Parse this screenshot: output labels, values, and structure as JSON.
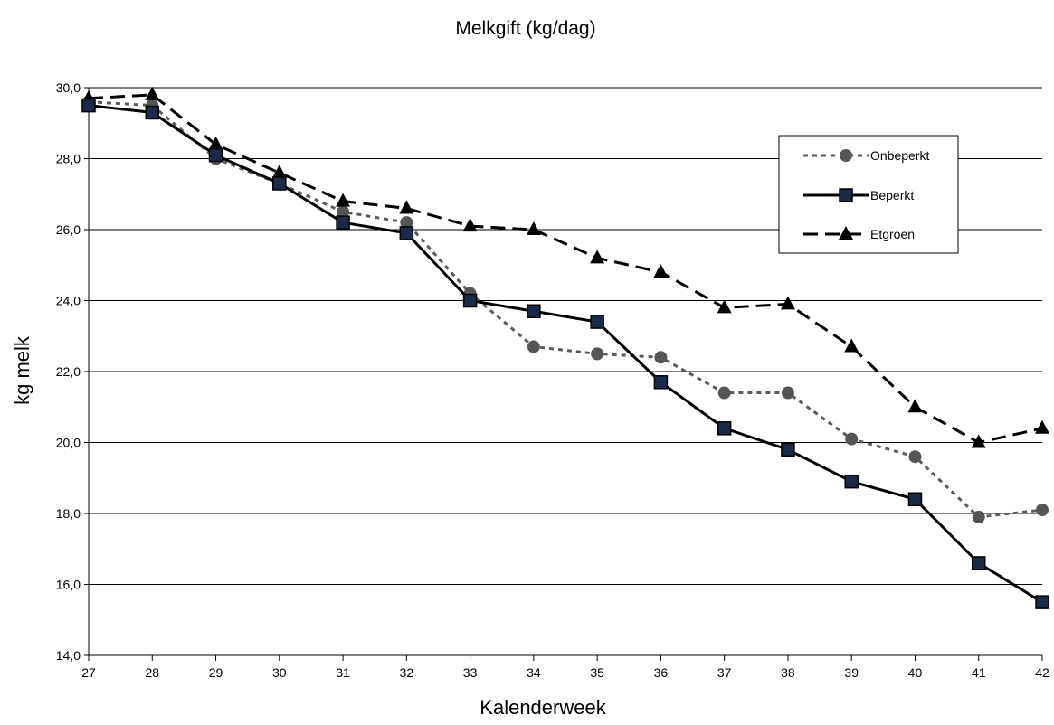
{
  "chart_data": {
    "type": "line",
    "title": "Melkgift (kg/dag)",
    "xlabel": "Kalenderweek",
    "ylabel": "kg melk",
    "categories": [
      "27",
      "28",
      "29",
      "30",
      "31",
      "32",
      "33",
      "34",
      "35",
      "36",
      "37",
      "38",
      "39",
      "40",
      "41",
      "42"
    ],
    "ylim": [
      14,
      30
    ],
    "yticks": [
      "14,0",
      "16,0",
      "18,0",
      "20,0",
      "22,0",
      "24,0",
      "26,0",
      "28,0",
      "30,0"
    ],
    "grid": true,
    "legend_position": "top-right",
    "series": [
      {
        "name": "Onbeperkt",
        "color": "#5a5a5a",
        "line_style": "dotted",
        "marker": "circle",
        "values": [
          29.6,
          29.5,
          28.0,
          27.3,
          26.5,
          26.2,
          24.2,
          22.7,
          22.5,
          22.4,
          21.4,
          21.4,
          20.1,
          19.6,
          17.9,
          18.1
        ]
      },
      {
        "name": "Beperkt",
        "color": "#000000",
        "line_style": "solid",
        "marker": "square",
        "marker_fill": "#1c2a4a",
        "values": [
          29.5,
          29.3,
          28.1,
          27.3,
          26.2,
          25.9,
          24.0,
          23.7,
          23.4,
          21.7,
          20.4,
          19.8,
          18.9,
          18.4,
          16.6,
          15.5
        ]
      },
      {
        "name": "Etgroen",
        "color": "#000000",
        "line_style": "dashed",
        "marker": "triangle",
        "values": [
          29.7,
          29.8,
          28.4,
          27.6,
          26.8,
          26.6,
          26.1,
          26.0,
          25.2,
          24.8,
          23.8,
          23.9,
          22.7,
          21.0,
          20.0,
          20.4
        ]
      }
    ]
  }
}
